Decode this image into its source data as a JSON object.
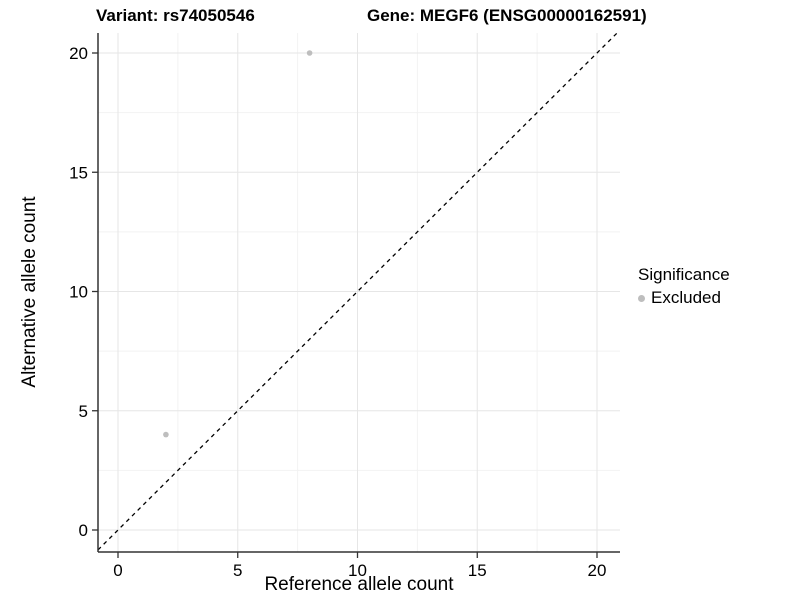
{
  "chart_data": {
    "type": "scatter",
    "title_left": "Variant: rs74050546",
    "title_right": "Gene: MEGF6 (ENSG00000162591)",
    "xlabel": "Reference allele count",
    "ylabel": "Alternative allele count",
    "xlim": [
      -0.85,
      20.95
    ],
    "ylim": [
      -0.9,
      20.85
    ],
    "x_ticks": [
      0,
      5,
      10,
      15,
      20
    ],
    "y_ticks": [
      0,
      5,
      10,
      15,
      20
    ],
    "x_minor_ticks": [
      2.5,
      7.5,
      12.5,
      17.5
    ],
    "y_minor_ticks": [
      2.5,
      7.5,
      12.5,
      17.5
    ],
    "grid": true,
    "series": [
      {
        "name": "Excluded",
        "color": "#bebebe",
        "points": [
          {
            "x": 8,
            "y": 20
          },
          {
            "x": 2,
            "y": 4
          }
        ]
      }
    ],
    "reference_line": {
      "kind": "identity y=x",
      "style": "dashed",
      "color": "#000000"
    },
    "legend": {
      "title": "Significance",
      "position": "right",
      "items": [
        {
          "label": "Excluded",
          "color": "#bebebe"
        }
      ]
    },
    "colors": {
      "excluded_point": "#bebebe",
      "axis_line": "#333333",
      "grid_major": "#e6e6e6",
      "grid_minor": "#f2f2f2",
      "tick_text": "#000000"
    }
  }
}
